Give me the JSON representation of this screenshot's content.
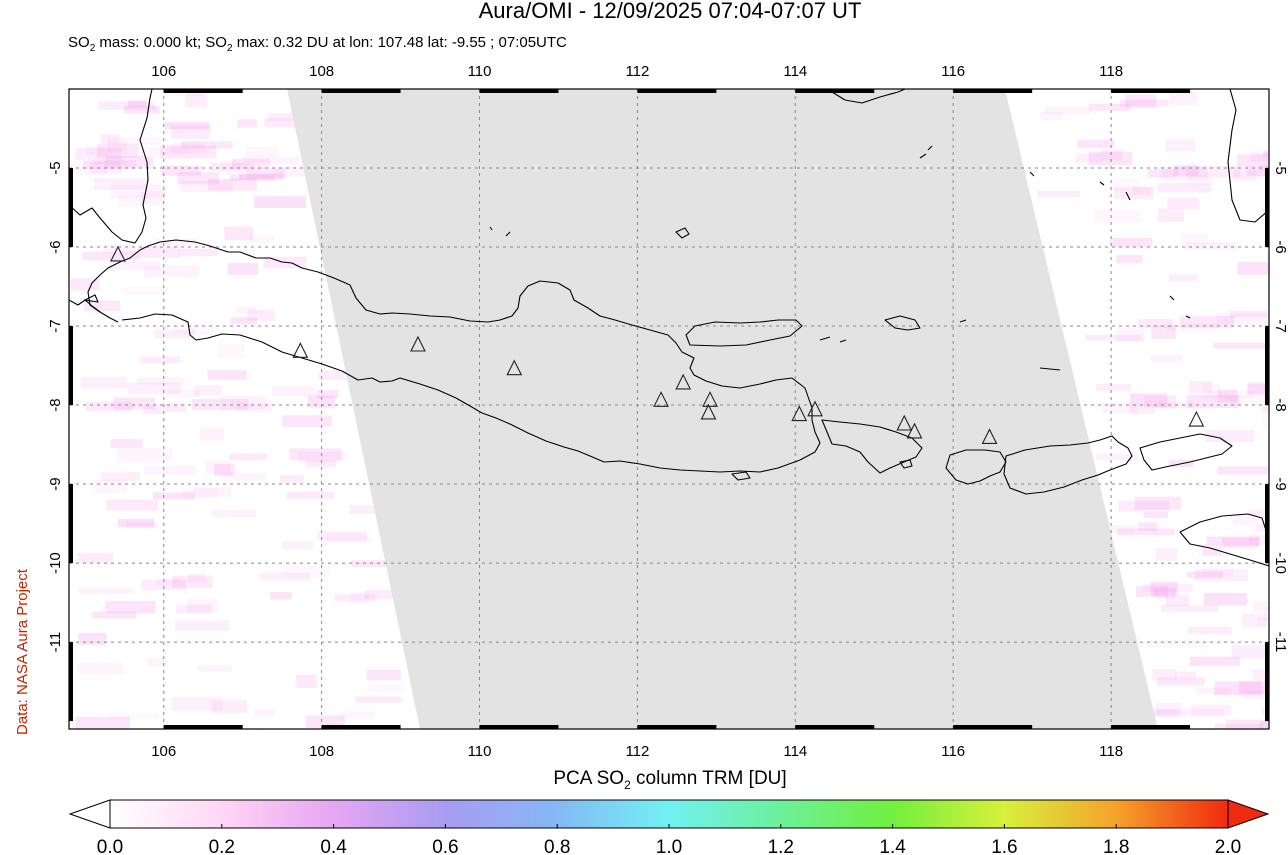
{
  "header": {
    "title": "Aura/OMI - 12/09/2025 07:04-07:07 UT",
    "subtitle_pre": "SO",
    "subtitle_sub": "2",
    "subtitle_mid": " mass: 0.000 kt; SO",
    "subtitle_sub2": "2",
    "subtitle_post": " max: 0.32 DU at lon: 107.48 lat: -9.55 ; 07:05UTC"
  },
  "credit": "Data: NASA Aura Project",
  "map": {
    "lon_range": [
      104.8,
      120.0
    ],
    "lat_range": [
      -12.1,
      -4.0
    ],
    "lon_ticks": [
      "106",
      "108",
      "110",
      "112",
      "114",
      "116",
      "118"
    ],
    "lat_ticks": [
      "-5",
      "-6",
      "-7",
      "-8",
      "-9",
      "-10",
      "-11"
    ],
    "no_data_color": "#e3e3e3",
    "coastline_color": "#000000",
    "grid": "dashed",
    "volcanoes": [
      {
        "lon": 105.42,
        "lat": -6.1
      },
      {
        "lon": 107.73,
        "lat": -7.32
      },
      {
        "lon": 109.22,
        "lat": -7.24
      },
      {
        "lon": 110.44,
        "lat": -7.54
      },
      {
        "lon": 112.3,
        "lat": -7.94
      },
      {
        "lon": 112.58,
        "lat": -7.72
      },
      {
        "lon": 112.92,
        "lat": -7.94
      },
      {
        "lon": 112.9,
        "lat": -8.1
      },
      {
        "lon": 114.05,
        "lat": -8.12
      },
      {
        "lon": 114.25,
        "lat": -8.06
      },
      {
        "lon": 115.38,
        "lat": -8.24
      },
      {
        "lon": 115.51,
        "lat": -8.34
      },
      {
        "lon": 116.46,
        "lat": -8.41
      },
      {
        "lon": 119.08,
        "lat": -8.19
      }
    ]
  },
  "colorbar": {
    "title_pre": "PCA SO",
    "title_sub": "2",
    "title_post": " column TRM [DU]",
    "min": 0.0,
    "max": 2.0,
    "labels": [
      "0.0",
      "0.2",
      "0.4",
      "0.6",
      "0.8",
      "1.0",
      "1.2",
      "1.4",
      "1.6",
      "1.8",
      "2.0"
    ],
    "colors": [
      "#ffffff",
      "#ffd6f5",
      "#e6a6f2",
      "#a99cf0",
      "#86b8f5",
      "#72f0f2",
      "#6cf09a",
      "#72ef3e",
      "#d8f03c",
      "#f4a22a",
      "#f02a10"
    ]
  }
}
